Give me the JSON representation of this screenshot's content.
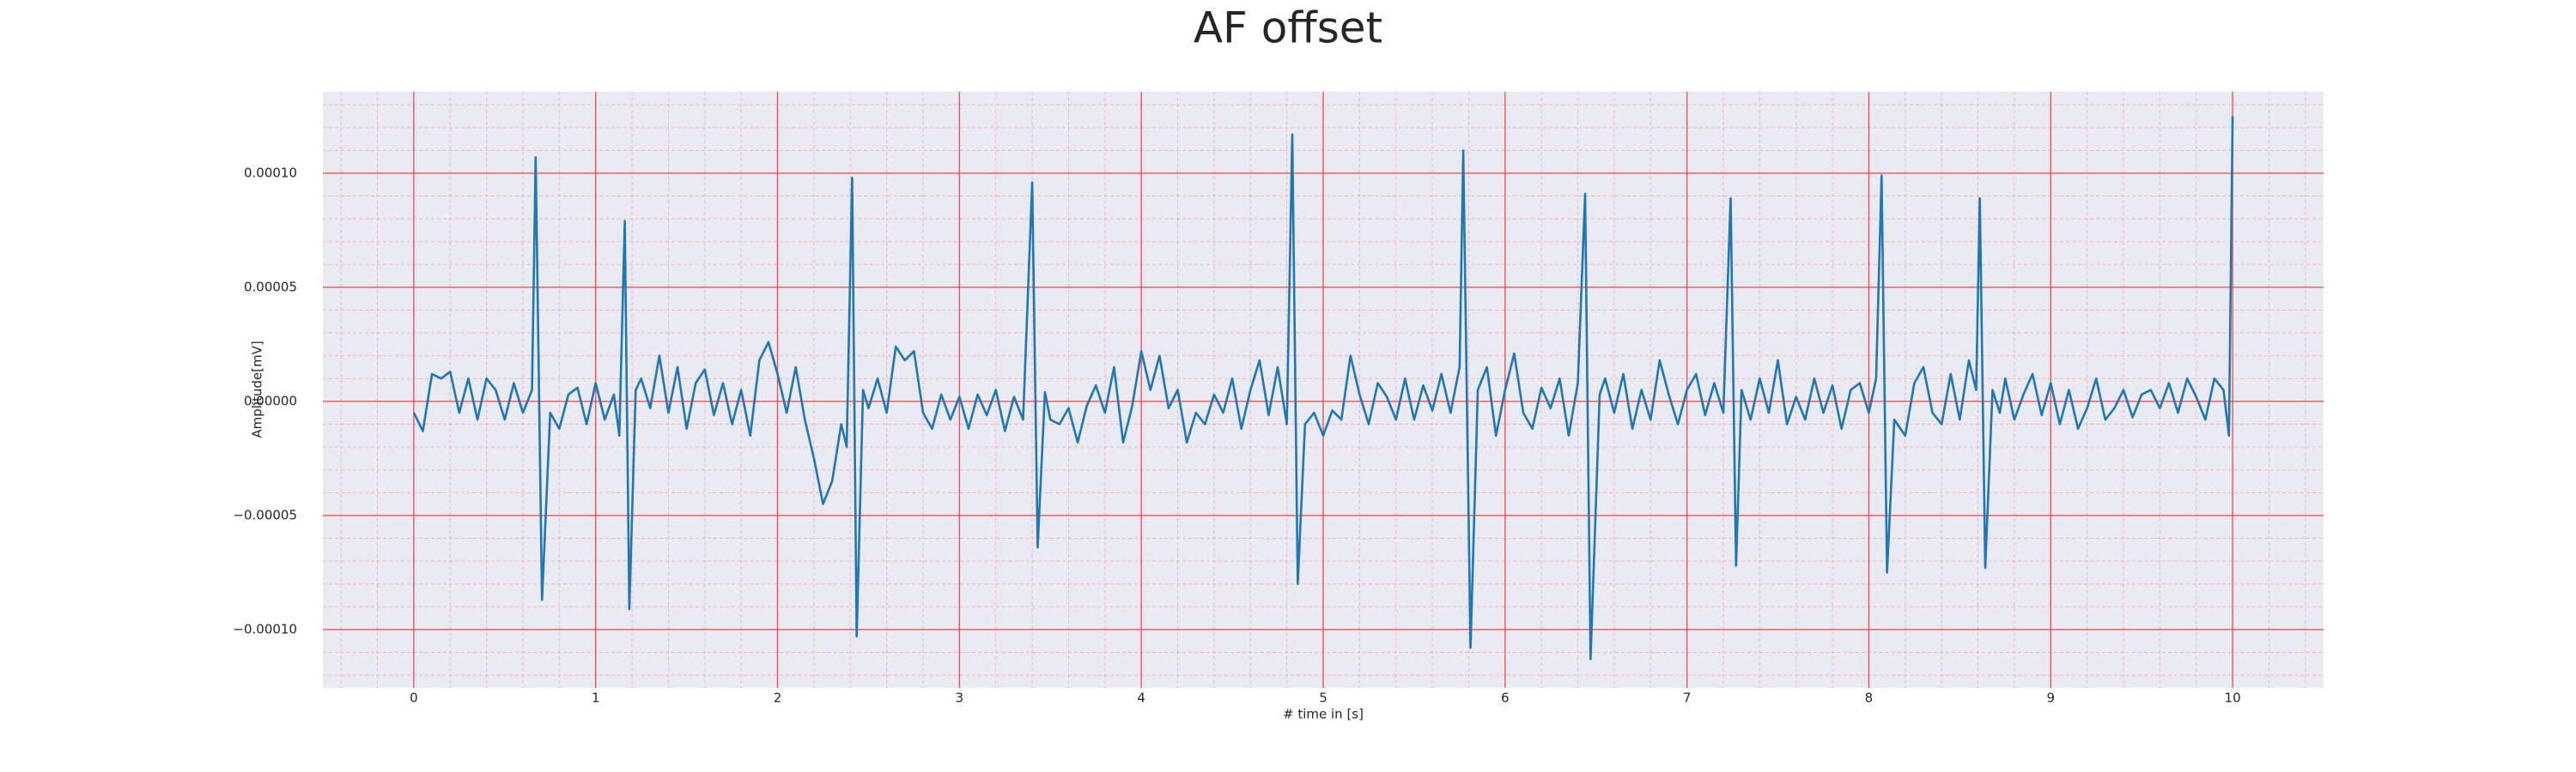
{
  "chart_data": {
    "type": "line",
    "title": "AF offset",
    "xlabel": "# time in [s]",
    "ylabel": "Amplitude[mV]",
    "color": "#1f77b4",
    "grid": true,
    "minor_grid": true,
    "xlim": [
      -0.5,
      10.5
    ],
    "xticks": [
      0,
      1,
      2,
      3,
      4,
      5,
      6,
      7,
      8,
      9,
      10
    ],
    "ylim": [
      -0.0001256,
      0.0001357
    ],
    "yticks": [
      {
        "value": -0.0001,
        "label": "−0.00010"
      },
      {
        "value": -5e-05,
        "label": "−0.00005"
      },
      {
        "value": 0,
        "label": "0.00000"
      },
      {
        "value": 5e-05,
        "label": "0.00005"
      },
      {
        "value": 0.0001,
        "label": "0.00010"
      }
    ],
    "x": [
      0.0,
      0.05,
      0.1,
      0.15,
      0.2,
      0.25,
      0.3,
      0.35,
      0.4,
      0.45,
      0.5,
      0.55,
      0.6,
      0.65,
      0.67,
      0.705,
      0.75,
      0.8,
      0.85,
      0.9,
      0.95,
      1.0,
      1.05,
      1.1,
      1.13,
      1.16,
      1.185,
      1.22,
      1.25,
      1.3,
      1.35,
      1.4,
      1.45,
      1.5,
      1.55,
      1.6,
      1.65,
      1.7,
      1.75,
      1.8,
      1.85,
      1.9,
      1.95,
      2.0,
      2.05,
      2.1,
      2.15,
      2.2,
      2.25,
      2.3,
      2.35,
      2.38,
      2.41,
      2.435,
      2.47,
      2.5,
      2.55,
      2.6,
      2.65,
      2.7,
      2.75,
      2.8,
      2.85,
      2.9,
      2.95,
      3.0,
      3.05,
      3.1,
      3.15,
      3.2,
      3.25,
      3.3,
      3.35,
      3.4,
      3.43,
      3.47,
      3.5,
      3.55,
      3.6,
      3.65,
      3.7,
      3.75,
      3.8,
      3.85,
      3.9,
      3.95,
      4.0,
      4.05,
      4.1,
      4.15,
      4.2,
      4.25,
      4.3,
      4.35,
      4.4,
      4.45,
      4.5,
      4.55,
      4.6,
      4.65,
      4.7,
      4.75,
      4.8,
      4.83,
      4.86,
      4.9,
      4.95,
      5.0,
      5.05,
      5.1,
      5.15,
      5.2,
      5.25,
      5.3,
      5.35,
      5.4,
      5.45,
      5.5,
      5.55,
      5.6,
      5.65,
      5.7,
      5.75,
      5.77,
      5.81,
      5.85,
      5.9,
      5.95,
      6.0,
      6.05,
      6.1,
      6.15,
      6.2,
      6.25,
      6.3,
      6.35,
      6.4,
      6.44,
      6.47,
      6.52,
      6.55,
      6.6,
      6.65,
      6.7,
      6.75,
      6.8,
      6.85,
      6.9,
      6.95,
      7.0,
      7.05,
      7.1,
      7.15,
      7.2,
      7.24,
      7.27,
      7.3,
      7.35,
      7.4,
      7.45,
      7.5,
      7.55,
      7.6,
      7.65,
      7.7,
      7.75,
      7.8,
      7.85,
      7.9,
      7.95,
      8.0,
      8.04,
      8.07,
      8.1,
      8.14,
      8.2,
      8.25,
      8.3,
      8.35,
      8.4,
      8.45,
      8.5,
      8.55,
      8.59,
      8.61,
      8.64,
      8.68,
      8.72,
      8.75,
      8.8,
      8.85,
      8.9,
      8.95,
      9.0,
      9.05,
      9.1,
      9.15,
      9.2,
      9.25,
      9.3,
      9.35,
      9.4,
      9.45,
      9.5,
      9.55,
      9.6,
      9.65,
      9.7,
      9.75,
      9.8,
      9.85,
      9.9,
      9.95,
      9.98,
      10.0
    ],
    "values": [
      -5e-06,
      -1.3e-05,
      1.2e-05,
      1e-05,
      1.3e-05,
      -5e-06,
      1e-05,
      -8e-06,
      1e-05,
      5e-06,
      -8e-06,
      8e-06,
      -5e-06,
      5e-06,
      0.000107,
      -8.7e-05,
      -5e-06,
      -1.2e-05,
      3e-06,
      6e-06,
      -1e-05,
      8e-06,
      -8e-06,
      3e-06,
      -1.5e-05,
      7.9e-05,
      -9.1e-05,
      5e-06,
      1e-05,
      -3e-06,
      2e-05,
      -5e-06,
      1.5e-05,
      -1.2e-05,
      8e-06,
      1.4e-05,
      -6e-06,
      8e-06,
      -1e-05,
      5e-06,
      -1.5e-05,
      1.8e-05,
      2.6e-05,
      1.2e-05,
      -5e-06,
      1.5e-05,
      -8e-06,
      -2.5e-05,
      -4.5e-05,
      -3.5e-05,
      -1e-05,
      -2e-05,
      9.8e-05,
      -0.000103,
      5e-06,
      -3e-06,
      1e-05,
      -5e-06,
      2.4e-05,
      1.8e-05,
      2.2e-05,
      -5e-06,
      -1.2e-05,
      3e-06,
      -8e-06,
      2e-06,
      -1.2e-05,
      3e-06,
      -6e-06,
      5e-06,
      -1.3e-05,
      2e-06,
      -8e-06,
      9.6e-05,
      -6.4e-05,
      4e-06,
      -8e-06,
      -1e-05,
      -3e-06,
      -1.8e-05,
      -2e-06,
      7e-06,
      -5e-06,
      1.5e-05,
      -1.8e-05,
      -2e-06,
      2.2e-05,
      5e-06,
      2e-05,
      -3e-06,
      5e-06,
      -1.8e-05,
      -5e-06,
      -1e-05,
      3e-06,
      -5e-06,
      1e-05,
      -1.2e-05,
      5e-06,
      1.8e-05,
      -6e-06,
      1.5e-05,
      -1e-05,
      0.000117,
      -8e-05,
      -1e-05,
      -5e-06,
      -1.5e-05,
      -4e-06,
      -8e-06,
      2e-05,
      3e-06,
      -1e-05,
      8e-06,
      2e-06,
      -8e-06,
      1e-05,
      -8e-06,
      7e-06,
      -4e-06,
      1.2e-05,
      -5e-06,
      1.5e-05,
      0.00011,
      -0.000108,
      5e-06,
      1.5e-05,
      -1.5e-05,
      5e-06,
      2.1e-05,
      -5e-06,
      -1.2e-05,
      6e-06,
      -3e-06,
      1e-05,
      -1.5e-05,
      8e-06,
      9.1e-05,
      -0.000113,
      3e-06,
      1e-05,
      -5e-06,
      1.2e-05,
      -1.2e-05,
      5e-06,
      -8e-06,
      1.8e-05,
      3e-06,
      -1e-05,
      5e-06,
      1.2e-05,
      -6e-06,
      8e-06,
      -5e-06,
      8.9e-05,
      -7.2e-05,
      5e-06,
      -8e-06,
      1e-05,
      -5e-06,
      1.8e-05,
      -1e-05,
      2e-06,
      -8e-06,
      1e-05,
      -5e-06,
      7e-06,
      -1.2e-05,
      5e-06,
      8e-06,
      -5e-06,
      1e-05,
      9.9e-05,
      -7.5e-05,
      -8e-06,
      -1.5e-05,
      8e-06,
      1.5e-05,
      -5e-06,
      -1e-05,
      1.2e-05,
      -8e-06,
      1.8e-05,
      5e-06,
      8.9e-05,
      -7.3e-05,
      5e-06,
      -5e-06,
      1e-05,
      -8e-06,
      3e-06,
      1.2e-05,
      -6e-06,
      8e-06,
      -1e-05,
      5e-06,
      -1.2e-05,
      -3e-06,
      1e-05,
      -8e-06,
      -3e-06,
      5e-06,
      -7e-06,
      3e-06,
      5e-06,
      -3e-06,
      8e-06,
      -5e-06,
      1e-05,
      2e-06,
      -8e-06,
      1e-05,
      5e-06,
      -1.5e-05,
      0.000125
    ]
  }
}
